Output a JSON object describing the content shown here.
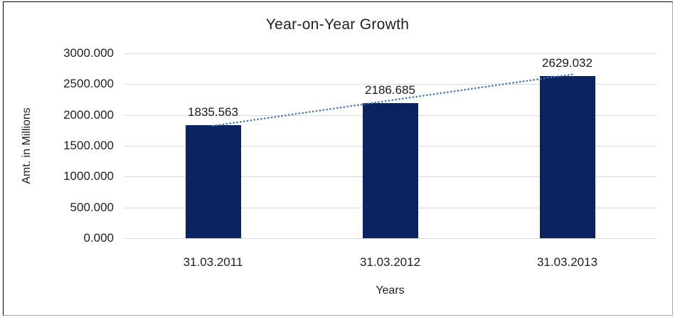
{
  "chart_data": {
    "type": "bar",
    "title": "Year-on-Year Growth",
    "xlabel": "Years",
    "ylabel": "Amt. in Millions",
    "categories": [
      "31.03.2011",
      "31.03.2012",
      "31.03.2013"
    ],
    "values": [
      1835.563,
      2186.685,
      2629.032
    ],
    "data_labels": [
      "1835.563",
      "2186.685",
      "2629.032"
    ],
    "y_ticks": [
      "3000.000",
      "2500.000",
      "2000.000",
      "1500.000",
      "1000.000",
      "500.000",
      "0.000"
    ],
    "ylim": [
      0,
      3000
    ],
    "grid": true,
    "legend": "none",
    "trendline": true,
    "colors": {
      "bar": "#0a2361",
      "trendline": "#4179c1",
      "gridline": "#d9d9d9",
      "text": "#1f1f1f"
    }
  }
}
